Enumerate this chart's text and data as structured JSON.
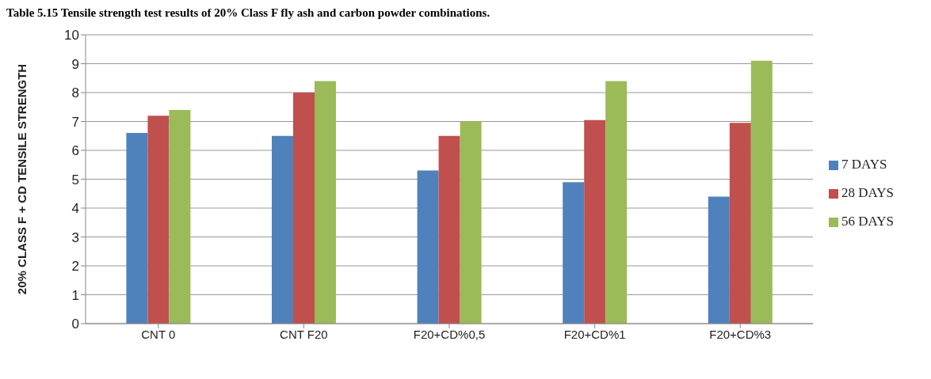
{
  "chart_data": {
    "type": "bar",
    "title": "Table 5.15 Tensile strength test results of 20% Class F fly ash and carbon powder combinations.",
    "ylabel": "20% CLASS F + CD TENSILE STRENGTH",
    "categories": [
      "CNT 0",
      "CNT F20",
      "F20+CD%0,5",
      "F20+CD%1",
      "F20+CD%3"
    ],
    "series": [
      {
        "name": "7 DAYS",
        "color": "#4f81bd",
        "values": [
          6.6,
          6.5,
          5.3,
          4.9,
          4.4
        ]
      },
      {
        "name": "28 DAYS",
        "color": "#c0504d",
        "values": [
          7.2,
          8.0,
          6.5,
          7.05,
          6.95
        ]
      },
      {
        "name": "56 DAYS",
        "color": "#9bbb59",
        "values": [
          7.4,
          8.4,
          7.0,
          8.4,
          9.1
        ]
      }
    ],
    "ylim": [
      0,
      10
    ],
    "yticks": [
      0,
      1,
      2,
      3,
      4,
      5,
      6,
      7,
      8,
      9,
      10
    ],
    "grid": "y",
    "legend": "right"
  }
}
